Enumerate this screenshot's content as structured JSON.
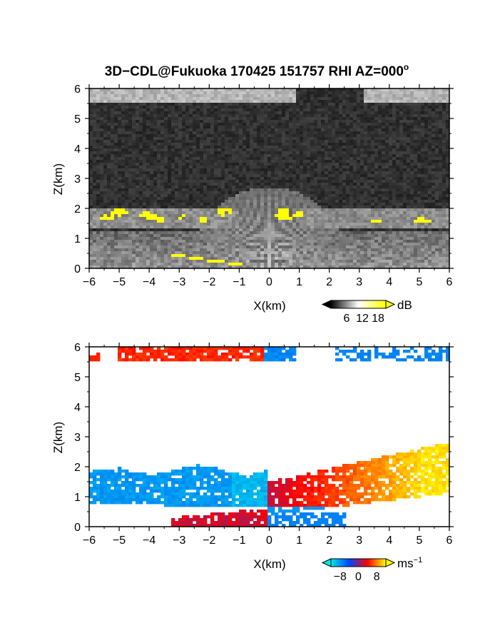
{
  "title": "3D−CDL@Fukuoka 170425 151757 RHI AZ=000",
  "title_superscript": "o",
  "chart_data": [
    {
      "type": "heatmap",
      "panel": "reflectivity",
      "xlabel": "X(km)",
      "ylabel": "Z(km)",
      "xlim": [
        -6,
        6
      ],
      "ylim": [
        0,
        6
      ],
      "xticks": [
        "−6",
        "−5",
        "−4",
        "−3",
        "−2",
        "−1",
        "0",
        "1",
        "2",
        "3",
        "4",
        "5",
        "6"
      ],
      "yticks": [
        "0",
        "1",
        "2",
        "3",
        "4",
        "5",
        "6"
      ],
      "colorbar": {
        "unit": "dB",
        "tick_labels": [
          "6",
          "12",
          "18"
        ],
        "tick_values": [
          6,
          12,
          18
        ],
        "range": [
          0,
          21
        ],
        "colors": [
          "#000000",
          "#ffffff",
          "#ffff00"
        ]
      },
      "features": [
        {
          "name": "upper cloud band",
          "z_range": [
            5.5,
            6.0
          ],
          "x_ranges": [
            [
              -6.0,
              0.9
            ],
            [
              3.1,
              6.0
            ]
          ],
          "level": "bright"
        },
        {
          "name": "echo fan",
          "apex_x": 0.0,
          "apex_z": 0.0,
          "top_z": 2.7
        },
        {
          "name": "strong echo patches",
          "z_range": [
            1.4,
            2.0
          ],
          "color": "#ffff00"
        }
      ]
    },
    {
      "type": "heatmap",
      "panel": "doppler_velocity",
      "xlabel": "X(km)",
      "ylabel": "Z(km)",
      "xlim": [
        -6,
        6
      ],
      "ylim": [
        0,
        6
      ],
      "xticks": [
        "−6",
        "−5",
        "−4",
        "−3",
        "−2",
        "−1",
        "0",
        "1",
        "2",
        "3",
        "4",
        "5",
        "6"
      ],
      "yticks": [
        "0",
        "1",
        "2",
        "3",
        "4",
        "5",
        "6"
      ],
      "colorbar": {
        "unit": "ms",
        "unit_superscript": "−1",
        "tick_labels": [
          "−8",
          "0",
          "8"
        ],
        "tick_values": [
          -8,
          0,
          8
        ],
        "range": [
          -12,
          12
        ],
        "colors": [
          "#00e6e6",
          "#0046ff",
          "#ff0000",
          "#ffff00"
        ]
      },
      "features": [
        {
          "name": "upper band approaching",
          "x_range": [
            -5.0,
            0.9
          ],
          "z_range": [
            5.5,
            6.0
          ],
          "velocity_ms": 4
        },
        {
          "name": "upper band receding",
          "x_range": [
            2.2,
            6.0
          ],
          "z_range": [
            5.6,
            6.0
          ],
          "velocity_ms": -6
        },
        {
          "name": "left wing",
          "x_range": [
            -6.0,
            -0.1
          ],
          "z_range": [
            0.6,
            2.2
          ],
          "velocity_ms": -7
        },
        {
          "name": "right wing",
          "x_range": [
            0.0,
            6.0
          ],
          "z_range": [
            0.4,
            2.8
          ],
          "velocity_ms": 5
        },
        {
          "name": "low level jet",
          "x_range": [
            -3.5,
            0.0
          ],
          "z_range": [
            0.0,
            0.6
          ],
          "velocity_ms": 1
        }
      ]
    }
  ]
}
